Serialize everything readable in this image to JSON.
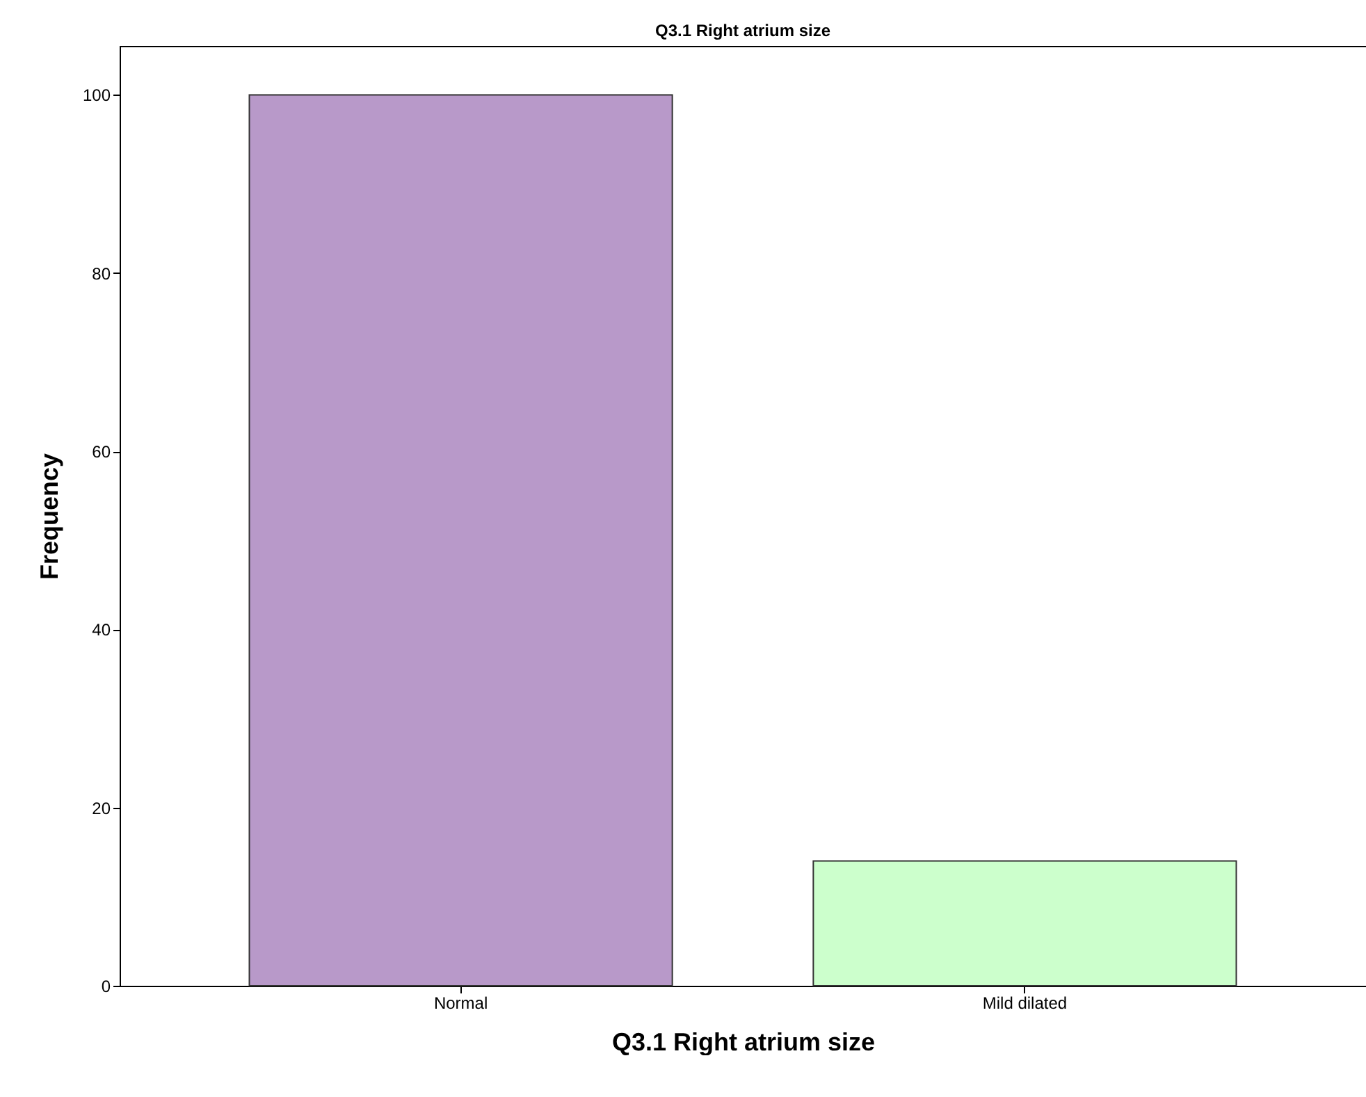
{
  "chart_data": {
    "type": "bar",
    "title": "Q3.1 Right atrium size",
    "xlabel": "Q3.1 Right atrium size",
    "ylabel": "Frequency",
    "categories": [
      "Normal",
      "Mild dilated"
    ],
    "values": [
      100,
      14
    ],
    "colors": [
      "#b899c9",
      "#ccffcc"
    ],
    "ylim": [
      0,
      105.5
    ],
    "yticks": [
      0,
      20,
      40,
      60,
      80,
      100
    ],
    "grid": false
  }
}
